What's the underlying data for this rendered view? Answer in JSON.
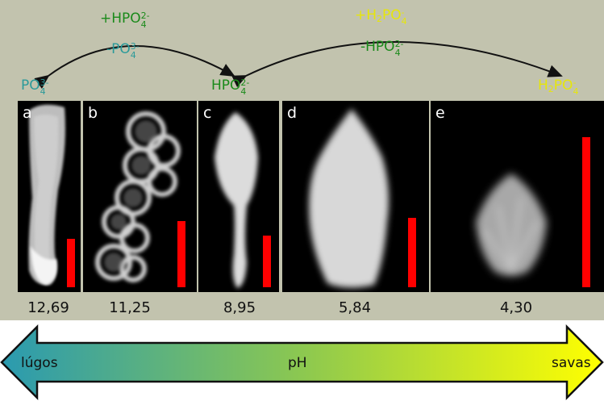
{
  "top_labels": {
    "po4": {
      "base": "PO",
      "sub": "4",
      "sup": "3-",
      "color": "#2a9a9a"
    },
    "hpo4": {
      "base": "HPO",
      "sub": "4",
      "sup": "2-",
      "color": "#1a8a1a"
    },
    "h2po4": {
      "h": "H",
      "h_sub": "2",
      "base": "PO",
      "sub": "4",
      "sup": "-",
      "color": "#e6e60a"
    }
  },
  "arrow_left": {
    "top": {
      "prefix": "+HPO",
      "sub": "4",
      "sup": "2-",
      "color": "#1a8a1a"
    },
    "bottom": {
      "prefix": "-PO",
      "sub": "4",
      "sup": "3-",
      "color": "#2a9a9a"
    }
  },
  "arrow_right": {
    "top": {
      "prefix": "+H",
      "h_sub": "2",
      "base": "PO",
      "sub": "4",
      "sup": "-",
      "color": "#e6e60a"
    },
    "bottom": {
      "prefix": "-HPO",
      "sub": "4",
      "sup": "2-",
      "color": "#1a8a1a"
    }
  },
  "panels": [
    {
      "letter": "a",
      "ph": "12,69"
    },
    {
      "letter": "b",
      "ph": "11,25"
    },
    {
      "letter": "c",
      "ph": "8,95"
    },
    {
      "letter": "d",
      "ph": "5,84"
    },
    {
      "letter": "e",
      "ph": "4,30"
    }
  ],
  "ph_scale": {
    "left": "lúgos",
    "center": "pH",
    "right": "savas"
  },
  "colors": {
    "background": "#c2c3ae",
    "scale_bar": "#ff0000",
    "gradient_start": "#2a9ab0",
    "gradient_mid": "#8cc850",
    "gradient_end": "#ffff00"
  }
}
